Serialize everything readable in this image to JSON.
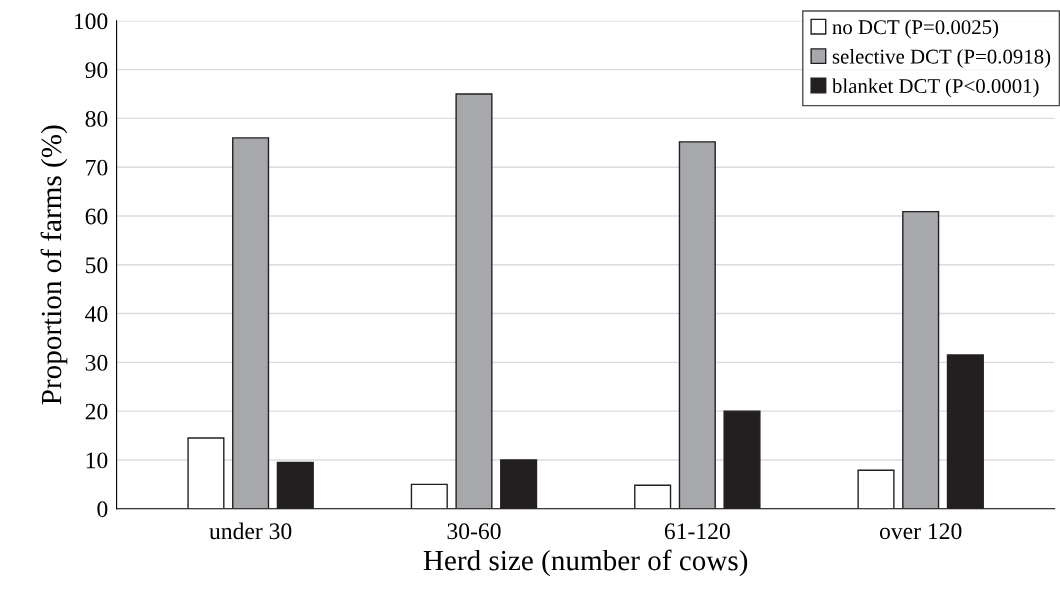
{
  "chart_data": {
    "type": "bar",
    "xlabel": "Herd size (number of cows)",
    "ylabel": "Proportion of farms (%)",
    "categories": [
      "under 30",
      "30-60",
      "61-120",
      "over 120"
    ],
    "series": [
      {
        "name": "no DCT (P=0.0025)",
        "color": "#ffffff",
        "values": [
          14.5,
          5,
          4.8,
          7.9
        ]
      },
      {
        "name": "selective DCT (P=0.0918)",
        "color": "#a7a8ac",
        "values": [
          76,
          85,
          75.2,
          60.9
        ]
      },
      {
        "name": "blanket DCT (P<0.0001)",
        "color": "#231f20",
        "values": [
          9.5,
          10,
          20,
          31.5
        ]
      }
    ],
    "ylim": [
      0,
      100
    ],
    "yticks": [
      0,
      10,
      20,
      30,
      40,
      50,
      60,
      70,
      80,
      90,
      100
    ],
    "grid": "y",
    "legend": "top right"
  }
}
